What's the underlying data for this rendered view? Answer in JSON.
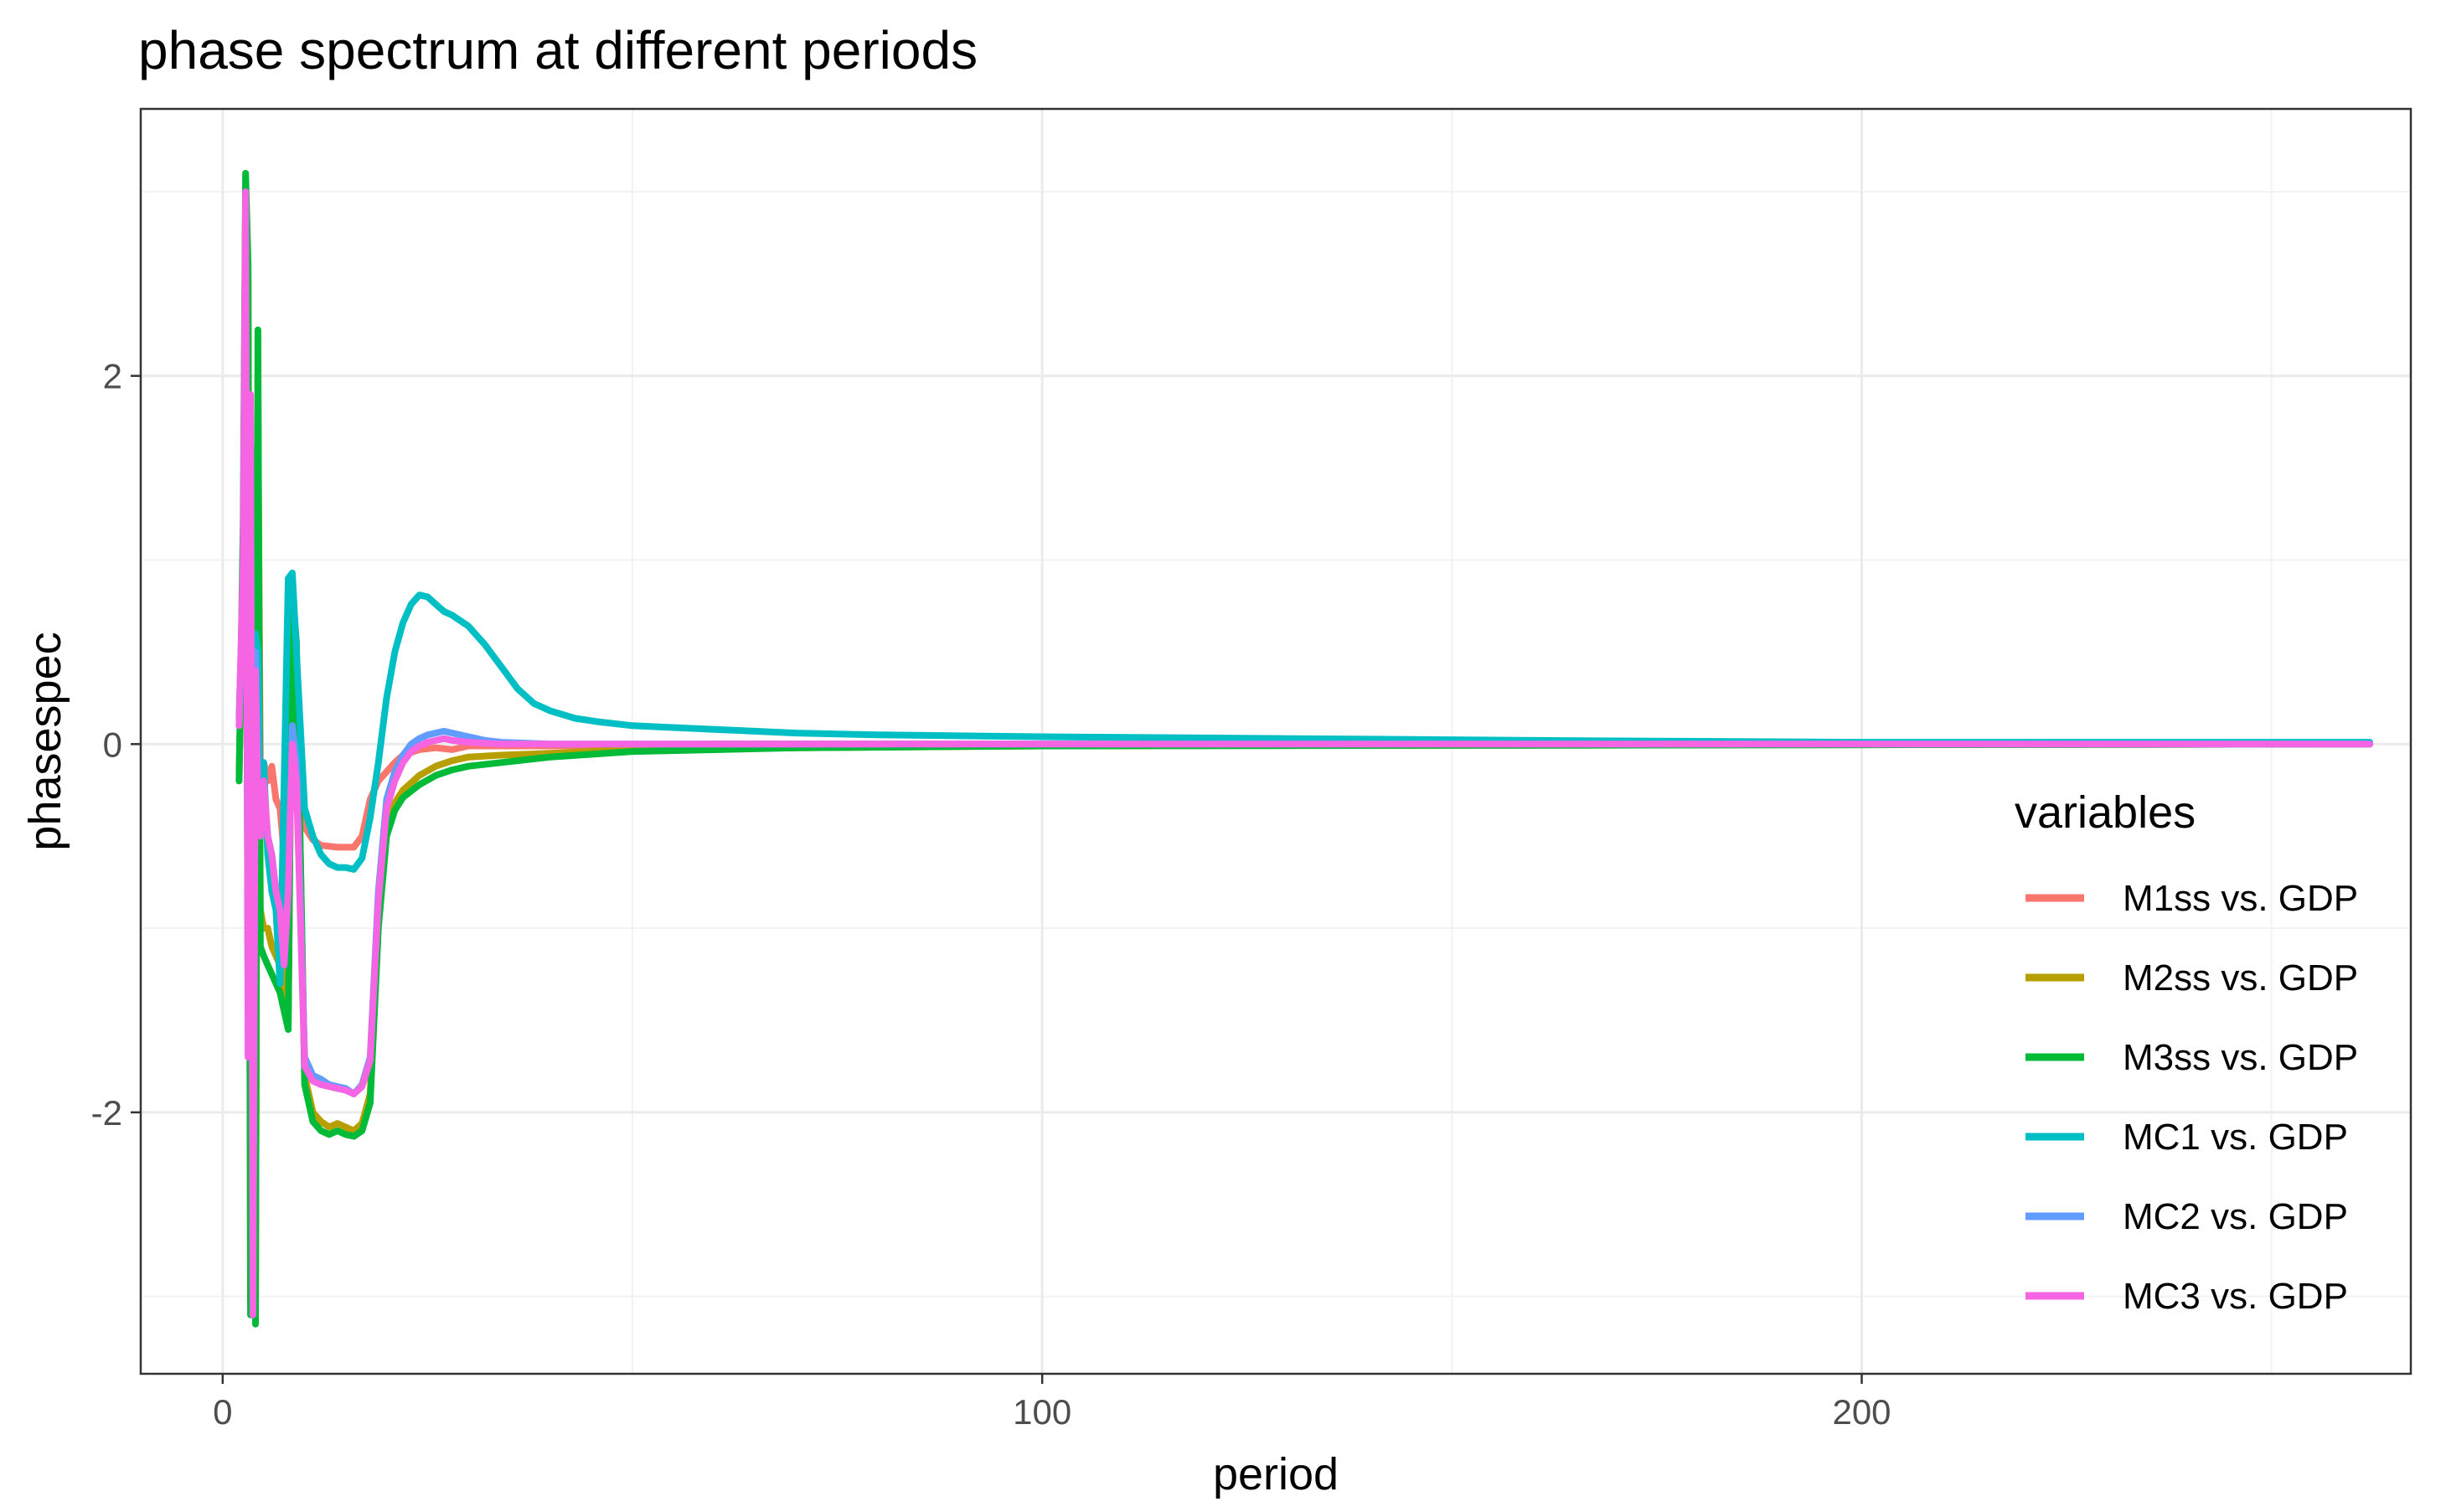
{
  "chart_data": {
    "type": "line",
    "title": "phase spectrum at different periods",
    "xlabel": "period",
    "ylabel": "phasespec",
    "xlim": [
      -10,
      267
    ],
    "ylim": [
      -3.42,
      3.45
    ],
    "x_ticks": [
      0,
      100,
      200
    ],
    "x_tick_labels": [
      "0",
      "100",
      "200"
    ],
    "x_minor_ticks": [
      50,
      150,
      250
    ],
    "y_ticks": [
      -2,
      0,
      2
    ],
    "y_tick_labels": [
      "-2",
      "0",
      "2"
    ],
    "y_minor_ticks": [
      -3,
      -1,
      1,
      3
    ],
    "grid": true,
    "legend": {
      "title": "variables",
      "position": "right"
    },
    "series": [
      {
        "name": "M1ss vs. GDP",
        "color": "#F8766D",
        "points": [
          [
            2,
            -0.15
          ],
          [
            2.5,
            0.8
          ],
          [
            2.8,
            3.0
          ],
          [
            3.1,
            2.2
          ],
          [
            3.4,
            -2.9
          ],
          [
            3.7,
            1.3
          ],
          [
            4.0,
            -3.12
          ],
          [
            4.3,
            1.8
          ],
          [
            4.6,
            -0.1
          ],
          [
            5,
            -0.1
          ],
          [
            5.5,
            -0.2
          ],
          [
            6,
            -0.12
          ],
          [
            6.5,
            -0.3
          ],
          [
            7,
            -0.35
          ],
          [
            7.5,
            -0.6
          ],
          [
            8,
            -1.4
          ],
          [
            8.5,
            0.8
          ],
          [
            9,
            0.4
          ],
          [
            10,
            -0.45
          ],
          [
            11,
            -0.52
          ],
          [
            12,
            -0.55
          ],
          [
            14,
            -0.56
          ],
          [
            16,
            -0.56
          ],
          [
            17,
            -0.5
          ],
          [
            18,
            -0.3
          ],
          [
            19,
            -0.2
          ],
          [
            20,
            -0.15
          ],
          [
            21,
            -0.1
          ],
          [
            22,
            -0.06
          ],
          [
            24,
            -0.03
          ],
          [
            26,
            -0.02
          ],
          [
            28,
            -0.03
          ],
          [
            30,
            -0.01
          ],
          [
            40,
            -0.01
          ],
          [
            60,
            0.0
          ],
          [
            262,
            0.0
          ]
        ]
      },
      {
        "name": "M2ss vs. GDP",
        "color": "#B79F00",
        "points": [
          [
            2,
            -0.2
          ],
          [
            2.5,
            1.0
          ],
          [
            2.8,
            3.02
          ],
          [
            3.1,
            2.5
          ],
          [
            3.4,
            -3.05
          ],
          [
            3.7,
            1.5
          ],
          [
            4.0,
            -3.1
          ],
          [
            4.3,
            2.0
          ],
          [
            4.6,
            -0.9
          ],
          [
            5,
            -1.0
          ],
          [
            5.5,
            -1.0
          ],
          [
            6,
            -1.1
          ],
          [
            6.5,
            -1.15
          ],
          [
            7,
            -1.2
          ],
          [
            7.5,
            -1.3
          ],
          [
            8,
            -1.5
          ],
          [
            8.5,
            0.8
          ],
          [
            9,
            0.5
          ],
          [
            10,
            -1.8
          ],
          [
            11,
            -2.0
          ],
          [
            12,
            -2.05
          ],
          [
            13,
            -2.08
          ],
          [
            14,
            -2.06
          ],
          [
            15,
            -2.08
          ],
          [
            16,
            -2.1
          ],
          [
            17,
            -2.06
          ],
          [
            18,
            -1.9
          ],
          [
            19,
            -0.9
          ],
          [
            20,
            -0.45
          ],
          [
            21,
            -0.32
          ],
          [
            22,
            -0.25
          ],
          [
            24,
            -0.17
          ],
          [
            26,
            -0.12
          ],
          [
            28,
            -0.09
          ],
          [
            30,
            -0.07
          ],
          [
            34,
            -0.06
          ],
          [
            40,
            -0.05
          ],
          [
            50,
            -0.03
          ],
          [
            70,
            -0.02
          ],
          [
            100,
            -0.01
          ],
          [
            262,
            0.0
          ]
        ]
      },
      {
        "name": "M3ss vs. GDP",
        "color": "#00BA38",
        "points": [
          [
            2,
            -0.2
          ],
          [
            2.5,
            1.2
          ],
          [
            2.8,
            3.1
          ],
          [
            3.1,
            2.6
          ],
          [
            3.4,
            -3.1
          ],
          [
            3.7,
            1.6
          ],
          [
            4.0,
            -3.15
          ],
          [
            4.3,
            2.25
          ],
          [
            4.6,
            -1.1
          ],
          [
            5,
            -1.15
          ],
          [
            5.5,
            -1.2
          ],
          [
            6,
            -1.25
          ],
          [
            6.5,
            -1.3
          ],
          [
            7,
            -1.35
          ],
          [
            7.5,
            -1.45
          ],
          [
            8,
            -1.55
          ],
          [
            8.5,
            0.85
          ],
          [
            9,
            0.55
          ],
          [
            10,
            -1.85
          ],
          [
            11,
            -2.05
          ],
          [
            12,
            -2.1
          ],
          [
            13,
            -2.12
          ],
          [
            14,
            -2.1
          ],
          [
            15,
            -2.12
          ],
          [
            16,
            -2.13
          ],
          [
            17,
            -2.1
          ],
          [
            18,
            -1.95
          ],
          [
            19,
            -1.0
          ],
          [
            20,
            -0.5
          ],
          [
            21,
            -0.36
          ],
          [
            22,
            -0.29
          ],
          [
            24,
            -0.22
          ],
          [
            26,
            -0.17
          ],
          [
            28,
            -0.14
          ],
          [
            30,
            -0.12
          ],
          [
            34,
            -0.1
          ],
          [
            40,
            -0.07
          ],
          [
            50,
            -0.04
          ],
          [
            70,
            -0.02
          ],
          [
            100,
            -0.01
          ],
          [
            262,
            0.0
          ]
        ]
      },
      {
        "name": "MC1 vs. GDP",
        "color": "#00BFC4",
        "points": [
          [
            2,
            0.15
          ],
          [
            2.5,
            0.9
          ],
          [
            2.8,
            2.0
          ],
          [
            3.1,
            -1.5
          ],
          [
            3.4,
            1.0
          ],
          [
            3.7,
            -1.0
          ],
          [
            4.0,
            0.6
          ],
          [
            4.3,
            0.5
          ],
          [
            4.6,
            -0.4
          ],
          [
            5,
            -0.1
          ],
          [
            5.5,
            -0.6
          ],
          [
            6,
            -0.8
          ],
          [
            6.5,
            -0.9
          ],
          [
            7,
            -1.3
          ],
          [
            7.5,
            -0.2
          ],
          [
            8,
            0.9
          ],
          [
            8.5,
            0.93
          ],
          [
            9,
            0.5
          ],
          [
            10,
            -0.35
          ],
          [
            11,
            -0.5
          ],
          [
            12,
            -0.6
          ],
          [
            13,
            -0.65
          ],
          [
            14,
            -0.67
          ],
          [
            15,
            -0.67
          ],
          [
            16,
            -0.68
          ],
          [
            17,
            -0.62
          ],
          [
            18,
            -0.4
          ],
          [
            19,
            -0.1
          ],
          [
            20,
            0.25
          ],
          [
            21,
            0.5
          ],
          [
            22,
            0.66
          ],
          [
            23,
            0.76
          ],
          [
            24,
            0.81
          ],
          [
            25,
            0.8
          ],
          [
            26,
            0.76
          ],
          [
            27,
            0.72
          ],
          [
            28,
            0.7
          ],
          [
            30,
            0.64
          ],
          [
            32,
            0.54
          ],
          [
            34,
            0.42
          ],
          [
            36,
            0.3
          ],
          [
            38,
            0.22
          ],
          [
            40,
            0.18
          ],
          [
            43,
            0.14
          ],
          [
            46,
            0.12
          ],
          [
            50,
            0.1
          ],
          [
            60,
            0.08
          ],
          [
            70,
            0.06
          ],
          [
            80,
            0.05
          ],
          [
            100,
            0.04
          ],
          [
            130,
            0.03
          ],
          [
            160,
            0.02
          ],
          [
            200,
            0.01
          ],
          [
            262,
            0.01
          ]
        ]
      },
      {
        "name": "MC2 vs. GDP",
        "color": "#619CFF",
        "points": [
          [
            2,
            0.1
          ],
          [
            2.5,
            0.9
          ],
          [
            2.8,
            2.9
          ],
          [
            3.1,
            -1.7
          ],
          [
            3.4,
            1.8
          ],
          [
            3.7,
            -3.1
          ],
          [
            4.0,
            0.5
          ],
          [
            4.3,
            -0.3
          ],
          [
            4.6,
            -0.5
          ],
          [
            5,
            -0.2
          ],
          [
            5.5,
            -0.5
          ],
          [
            6,
            -0.6
          ],
          [
            6.5,
            -0.8
          ],
          [
            7,
            -0.9
          ],
          [
            7.5,
            -1.2
          ],
          [
            8,
            -0.8
          ],
          [
            8.5,
            0.1
          ],
          [
            9,
            -0.1
          ],
          [
            10,
            -1.7
          ],
          [
            11,
            -1.8
          ],
          [
            12,
            -1.82
          ],
          [
            13,
            -1.85
          ],
          [
            14,
            -1.86
          ],
          [
            15,
            -1.87
          ],
          [
            16,
            -1.9
          ],
          [
            17,
            -1.85
          ],
          [
            18,
            -1.7
          ],
          [
            19,
            -0.8
          ],
          [
            20,
            -0.3
          ],
          [
            21,
            -0.15
          ],
          [
            22,
            -0.06
          ],
          [
            23,
            0.0
          ],
          [
            24,
            0.03
          ],
          [
            25,
            0.05
          ],
          [
            26,
            0.06
          ],
          [
            27,
            0.07
          ],
          [
            28,
            0.06
          ],
          [
            30,
            0.04
          ],
          [
            32,
            0.02
          ],
          [
            34,
            0.01
          ],
          [
            40,
            0.0
          ],
          [
            262,
            0.0
          ]
        ]
      },
      {
        "name": "MC3 vs. GDP",
        "color": "#F564E3",
        "points": [
          [
            2,
            0.1
          ],
          [
            2.5,
            1.0
          ],
          [
            2.8,
            3.0
          ],
          [
            3.1,
            -1.7
          ],
          [
            3.4,
            1.9
          ],
          [
            3.7,
            -3.1
          ],
          [
            4.0,
            0.4
          ],
          [
            4.3,
            -0.3
          ],
          [
            4.6,
            -0.5
          ],
          [
            5,
            -0.2
          ],
          [
            5.5,
            -0.5
          ],
          [
            6,
            -0.6
          ],
          [
            6.5,
            -0.8
          ],
          [
            7,
            -0.9
          ],
          [
            7.5,
            -1.2
          ],
          [
            8,
            -0.8
          ],
          [
            8.5,
            0.0
          ],
          [
            9,
            -0.2
          ],
          [
            10,
            -1.75
          ],
          [
            11,
            -1.83
          ],
          [
            12,
            -1.85
          ],
          [
            13,
            -1.86
          ],
          [
            14,
            -1.87
          ],
          [
            15,
            -1.88
          ],
          [
            16,
            -1.9
          ],
          [
            17,
            -1.86
          ],
          [
            18,
            -1.72
          ],
          [
            19,
            -0.85
          ],
          [
            20,
            -0.35
          ],
          [
            21,
            -0.2
          ],
          [
            22,
            -0.1
          ],
          [
            23,
            -0.04
          ],
          [
            24,
            -0.01
          ],
          [
            25,
            0.01
          ],
          [
            26,
            0.02
          ],
          [
            27,
            0.03
          ],
          [
            28,
            0.02
          ],
          [
            30,
            0.01
          ],
          [
            34,
            0.0
          ],
          [
            262,
            0.0
          ]
        ]
      }
    ]
  }
}
